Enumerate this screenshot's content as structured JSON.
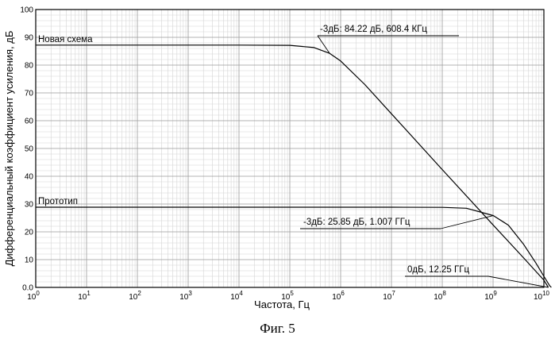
{
  "chart_data": {
    "type": "line",
    "xlabel": "Частота, Гц",
    "ylabel": "Дифференциальный коэффициент усиления, дБ",
    "x_scale": "log",
    "xlim": [
      1,
      10000000000
    ],
    "ylim": [
      0,
      100
    ],
    "x_ticks": [
      {
        "base": "10",
        "exp": "0"
      },
      {
        "base": "10",
        "exp": "1"
      },
      {
        "base": "10",
        "exp": "2"
      },
      {
        "base": "10",
        "exp": "3"
      },
      {
        "base": "10",
        "exp": "4"
      },
      {
        "base": "10",
        "exp": "5"
      },
      {
        "base": "10",
        "exp": "6"
      },
      {
        "base": "10",
        "exp": "7"
      },
      {
        "base": "10",
        "exp": "8"
      },
      {
        "base": "10",
        "exp": "9"
      },
      {
        "base": "10",
        "exp": "10"
      }
    ],
    "y_ticks": [
      "0.0",
      "10",
      "20",
      "30",
      "40",
      "50",
      "60",
      "70",
      "80",
      "90",
      "100"
    ],
    "grid": true,
    "series": [
      {
        "name": "Новая схема",
        "x": [
          1,
          10,
          100,
          1000,
          10000,
          100000,
          300000,
          608400,
          1000000,
          3000000,
          10000000,
          100000000,
          1000000000,
          4000000000,
          10000000000,
          12250000000
        ],
        "y": [
          87.2,
          87.2,
          87.2,
          87.2,
          87.2,
          87.1,
          86.3,
          84.22,
          81.5,
          73.0,
          62.5,
          42.4,
          22.5,
          10.6,
          2.6,
          0
        ]
      },
      {
        "name": "Прототип",
        "x": [
          1,
          10,
          100,
          1000,
          10000,
          100000,
          1000000,
          10000000,
          100000000,
          300000000,
          1007000000,
          2000000000,
          4000000000,
          7000000000,
          10000000000,
          13000000000,
          14000000000
        ],
        "y": [
          28.85,
          28.85,
          28.85,
          28.85,
          28.85,
          28.85,
          28.85,
          28.85,
          28.8,
          28.5,
          25.85,
          22.4,
          15.5,
          8.7,
          4.0,
          0.6,
          0
        ]
      }
    ],
    "annotations": [
      {
        "text": "-3дБ: 84.22 дБ, 608.4 КГц",
        "x": 608400,
        "y": 84.22
      },
      {
        "text": "-3дБ: 25.85 дБ, 1.007 ГГц",
        "x": 1007000000,
        "y": 25.85
      },
      {
        "text": "0дБ, 12.25 ГГц",
        "x": 12250000000,
        "y": 0
      }
    ]
  },
  "caption": "Фиг. 5"
}
